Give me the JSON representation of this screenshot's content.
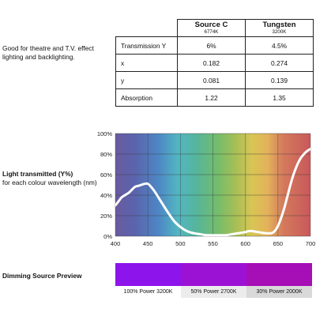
{
  "description": "Good for theatre and T.V. effect lighting and backlighting.",
  "specs": {
    "columns": [
      {
        "name": "Source C",
        "temp": "6774K"
      },
      {
        "name": "Tungsten",
        "temp": "3200K"
      }
    ],
    "rows": [
      {
        "label": "Transmission Y",
        "values": [
          "6%",
          "4.5%"
        ]
      },
      {
        "label": "x",
        "values": [
          "0.182",
          "0.274"
        ]
      },
      {
        "label": "y",
        "values": [
          "0.081",
          "0.139"
        ]
      },
      {
        "label": "Absorption",
        "values": [
          "1.22",
          "1.35"
        ]
      }
    ]
  },
  "chart_label": {
    "title": "Light transmitted (Y%)",
    "subtitle": "for each colour wavelength (nm)"
  },
  "chart_data": {
    "type": "line",
    "title": "",
    "xlabel": "",
    "ylabel": "",
    "xlim": [
      400,
      700
    ],
    "ylim": [
      0,
      100
    ],
    "x_ticks": [
      400,
      450,
      500,
      550,
      600,
      650,
      700
    ],
    "y_ticks": [
      0,
      20,
      40,
      60,
      80,
      100
    ],
    "y_tick_labels": [
      "0%",
      "20%",
      "40%",
      "60%",
      "80%",
      "100%"
    ],
    "grid": true,
    "background": "visible spectrum gradient",
    "line_color": "#ffffff",
    "series": [
      {
        "x": [
          400,
          405,
          410,
          420,
          425,
          430,
          435,
          440,
          445,
          450,
          455,
          460,
          470,
          480,
          490,
          500,
          510,
          520,
          530,
          540,
          550,
          560,
          570,
          580,
          590,
          600,
          605,
          610,
          620,
          630,
          640,
          645,
          650,
          655,
          660,
          665,
          670,
          675,
          680,
          685,
          690,
          695,
          700
        ],
        "y": [
          30,
          34,
          38,
          42,
          45,
          48,
          49,
          50,
          51,
          51,
          48,
          44,
          34,
          24,
          15,
          9,
          5,
          3,
          2,
          1,
          1,
          1,
          1,
          2,
          3,
          4,
          5,
          5,
          4,
          3,
          3,
          5,
          10,
          18,
          28,
          40,
          52,
          62,
          70,
          76,
          80,
          83,
          85
        ]
      }
    ]
  },
  "dimming": {
    "title": "Dimming Source Preview",
    "swatches": [
      {
        "color": "#8d14ea",
        "label": "100% Power 3200K",
        "label_bg": "#ffffff"
      },
      {
        "color": "#9c12d4",
        "label": "50% Power 2700K",
        "label_bg": "#ececec"
      },
      {
        "color": "#a60eb6",
        "label": "30% Power 2000K",
        "label_bg": "#d9d9d9"
      }
    ]
  }
}
